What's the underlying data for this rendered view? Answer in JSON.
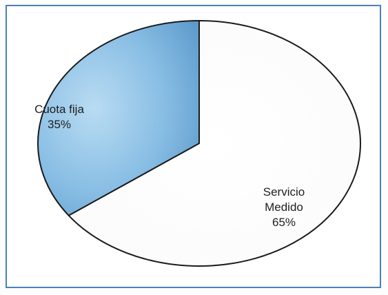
{
  "chart_data": {
    "type": "pie",
    "title": "",
    "slices": [
      {
        "label_lines": [
          "Servicio",
          "Medido"
        ],
        "value": 65,
        "value_label": "65%",
        "color": "#ffffff"
      },
      {
        "label_lines": [
          "Cuota fija"
        ],
        "value": 35,
        "value_label": "35%",
        "color": "#7db4de"
      }
    ],
    "legend": "none",
    "start_angle_deg": 0,
    "direction": "clockwise"
  },
  "colors": {
    "frame_border": "#4c7fb8",
    "slice_outline": "#1a1a1a",
    "accent_blue": "#7db4de"
  }
}
